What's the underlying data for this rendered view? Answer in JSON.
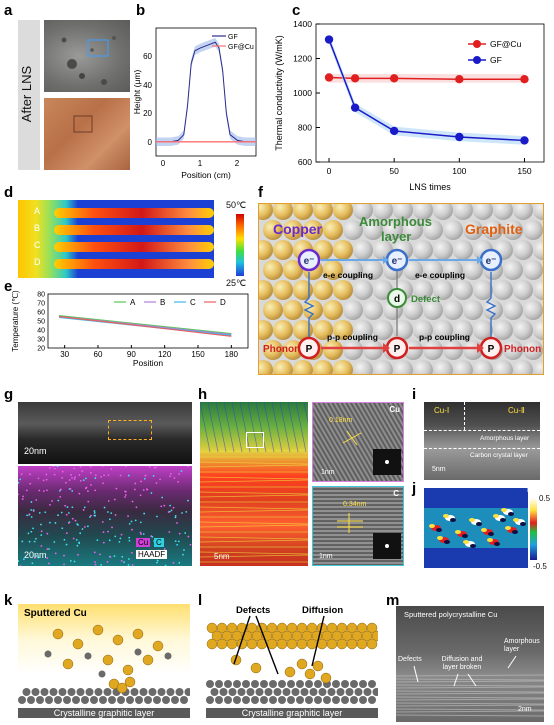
{
  "panels": {
    "a": {
      "letter": "a",
      "label": "After  LNS"
    },
    "b": {
      "letter": "b",
      "xlabel": "Position (cm)",
      "ylabel": "Height (μm)",
      "xticks": [
        "0",
        "1",
        "2"
      ],
      "yticks": [
        "0",
        "20",
        "40",
        "60"
      ],
      "legend": [
        "GF",
        "GF@Cu"
      ]
    },
    "c": {
      "letter": "c",
      "xlabel": "LNS times",
      "ylabel": "Thermal conductivity (W/mK)",
      "xticks": [
        "0",
        "50",
        "100",
        "150"
      ],
      "yticks": [
        "600",
        "800",
        "1000",
        "1200",
        "1400"
      ],
      "legend": [
        "GF@Cu",
        "GF"
      ]
    },
    "d": {
      "letter": "d",
      "rows": [
        "A",
        "B",
        "C",
        "D"
      ],
      "scale_max": "50℃",
      "scale_min": "25℃"
    },
    "e": {
      "letter": "e",
      "xlabel": "Position",
      "ylabel": "Temperature (℃)",
      "xticks": [
        "30",
        "60",
        "90",
        "120",
        "150",
        "180"
      ],
      "yticks": [
        "20",
        "30",
        "40",
        "50",
        "60",
        "70",
        "80"
      ],
      "legend": [
        "A",
        "B",
        "C",
        "D"
      ]
    },
    "f": {
      "letter": "f",
      "copper": "Copper",
      "amorphous": "Amorphous",
      "layer": "layer",
      "graphite": "Graphite",
      "electron": "e⁻",
      "coupling_ee": "e-e coupling",
      "coupling_pp": "p-p coupling",
      "defect_symbol": "d",
      "defect": "Defect",
      "phonon_symbol": "P",
      "phonon": "Phonon"
    },
    "g": {
      "letter": "g",
      "scale_top": "20nm",
      "scale_bottom": "20nm",
      "cu": "Cu",
      "c": "C",
      "haadf": "HAADF"
    },
    "h": {
      "letter": "h",
      "scale_main": "5nm",
      "spacing_cu": "0.18nm",
      "cu": "Cu",
      "scale_cu": "1nm",
      "spacing_c": "0.34nm",
      "c": "C",
      "scale_c": "1nm"
    },
    "i": {
      "letter": "i",
      "cu1": "Cu-Ⅰ",
      "cu2": "Cu-Ⅱ",
      "amorphous": "Amorphous layer",
      "carbon": "Carbon crystal layer",
      "scale": "5nm"
    },
    "j": {
      "letter": "j",
      "cb_label": "Eₓᵧ",
      "cb_max": "0.5",
      "cb_min": "-0.5"
    },
    "k": {
      "letter": "k",
      "sputtered": "Sputtered Cu",
      "base": "Crystalline graphitic layer"
    },
    "l": {
      "letter": "l",
      "defects": "Defects",
      "diffusion": "Diffusion",
      "base": "Crystalline graphitic layer"
    },
    "m": {
      "letter": "m",
      "title": "Sputtered polycrystalline Cu",
      "defects": "Defects",
      "diffusion": "Diffusion and layer broken",
      "amorphous": "Amorphous layer",
      "scale": "2nm"
    }
  },
  "chart_data": [
    {
      "panel": "b",
      "type": "line",
      "title": "",
      "xlabel": "Position (cm)",
      "ylabel": "Height (μm)",
      "xlim": [
        -0.2,
        2.5
      ],
      "ylim": [
        -10,
        80
      ],
      "legend_position": "top-right",
      "series": [
        {
          "name": "GF",
          "color": "#2b2b8c",
          "x": [
            -0.2,
            0.2,
            0.4,
            0.55,
            0.65,
            0.75,
            0.85,
            1.0,
            1.2,
            1.4,
            1.5,
            1.6,
            1.7,
            1.8,
            2.0,
            2.2,
            2.5
          ],
          "y": [
            0,
            0,
            1,
            5,
            25,
            55,
            64,
            66,
            68,
            70,
            66,
            50,
            20,
            5,
            1,
            0,
            0
          ]
        },
        {
          "name": "GF@Cu",
          "color": "#ff7070",
          "x": [
            -0.2,
            2.5
          ],
          "y": [
            0,
            0
          ]
        }
      ]
    },
    {
      "panel": "c",
      "type": "line",
      "title": "",
      "xlabel": "LNS times",
      "ylabel": "Thermal conductivity (W/mK)",
      "xlim": [
        -10,
        165
      ],
      "ylim": [
        600,
        1400
      ],
      "legend_position": "top-right",
      "series": [
        {
          "name": "GF@Cu",
          "color": "#e02020",
          "x": [
            0,
            20,
            50,
            100,
            150
          ],
          "y": [
            1090,
            1085,
            1085,
            1080,
            1080
          ]
        },
        {
          "name": "GF",
          "color": "#1a1ac8",
          "x": [
            0,
            20,
            50,
            100,
            150
          ],
          "y": [
            1310,
            915,
            780,
            745,
            725
          ]
        }
      ]
    },
    {
      "panel": "e",
      "type": "line",
      "title": "",
      "xlabel": "Position",
      "ylabel": "Temperature (℃)",
      "xlim": [
        15,
        195
      ],
      "ylim": [
        20,
        80
      ],
      "legend_position": "top",
      "series": [
        {
          "name": "A",
          "color": "#5ac85a",
          "x": [
            25,
            180
          ],
          "y": [
            56,
            36
          ]
        },
        {
          "name": "B",
          "color": "#b080d8",
          "x": [
            25,
            180
          ],
          "y": [
            55,
            35
          ]
        },
        {
          "name": "C",
          "color": "#40b8e8",
          "x": [
            25,
            180
          ],
          "y": [
            54,
            34
          ]
        },
        {
          "name": "D",
          "color": "#e86060",
          "x": [
            25,
            180
          ],
          "y": [
            55,
            33
          ]
        }
      ]
    }
  ]
}
